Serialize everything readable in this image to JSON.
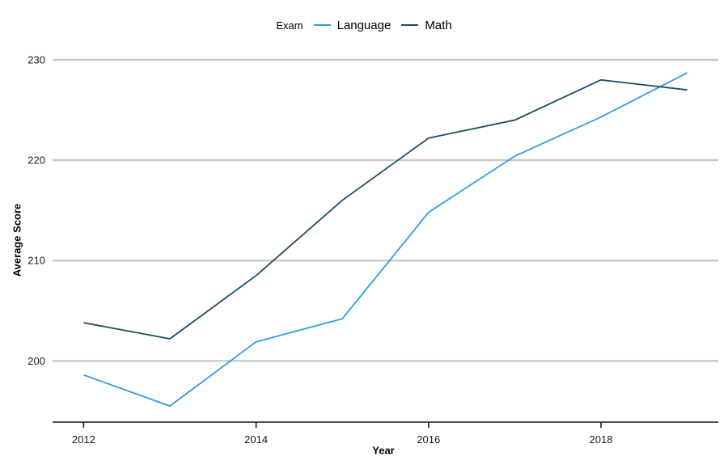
{
  "chart_data": {
    "type": "line",
    "legend_title": "Exam",
    "xlabel": "Year",
    "ylabel": "Average Score",
    "x": [
      2012,
      2013,
      2014,
      2015,
      2016,
      2017,
      2018,
      2019
    ],
    "series": [
      {
        "name": "Language",
        "color": "#2e9fdf",
        "values": [
          198.6,
          195.5,
          201.9,
          204.2,
          214.8,
          220.4,
          224.3,
          228.7
        ]
      },
      {
        "name": "Math",
        "color": "#1f4b63",
        "values": [
          203.8,
          202.2,
          208.5,
          216.0,
          222.2,
          224.0,
          228.0,
          227.0
        ]
      }
    ],
    "x_ticks": [
      2012,
      2014,
      2016,
      2018
    ],
    "y_ticks": [
      200,
      210,
      220,
      230
    ],
    "xlim": [
      2011.64,
      2019.36
    ],
    "ylim": [
      193.9,
      230
    ],
    "grid": "horizontal-only",
    "legend_position": "top-center",
    "gridline_color": "#c9c9c9",
    "axis_color": "#1a1a1a"
  }
}
